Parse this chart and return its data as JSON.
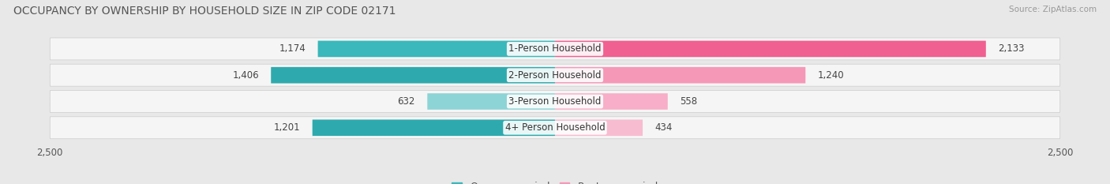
{
  "title": "OCCUPANCY BY OWNERSHIP BY HOUSEHOLD SIZE IN ZIP CODE 02171",
  "source": "Source: ZipAtlas.com",
  "categories": [
    "1-Person Household",
    "2-Person Household",
    "3-Person Household",
    "4+ Person Household"
  ],
  "owner_values": [
    1174,
    1406,
    632,
    1201
  ],
  "renter_values": [
    2133,
    1240,
    558,
    434
  ],
  "max_val": 2500,
  "owner_colors": [
    "#3ab8bb",
    "#2eaaae",
    "#8dd4d6",
    "#2eaaae"
  ],
  "renter_colors": [
    "#f06090",
    "#f598b8",
    "#f8aec8",
    "#f8bcd0"
  ],
  "bg_color": "#e8e8e8",
  "row_bg_light": "#f5f5f5",
  "row_bg_dark": "#e0e0e0",
  "title_fontsize": 10,
  "label_fontsize": 8.5,
  "value_fontsize": 8.5,
  "axis_label_fontsize": 8.5,
  "legend_fontsize": 9,
  "bar_height": 0.62
}
